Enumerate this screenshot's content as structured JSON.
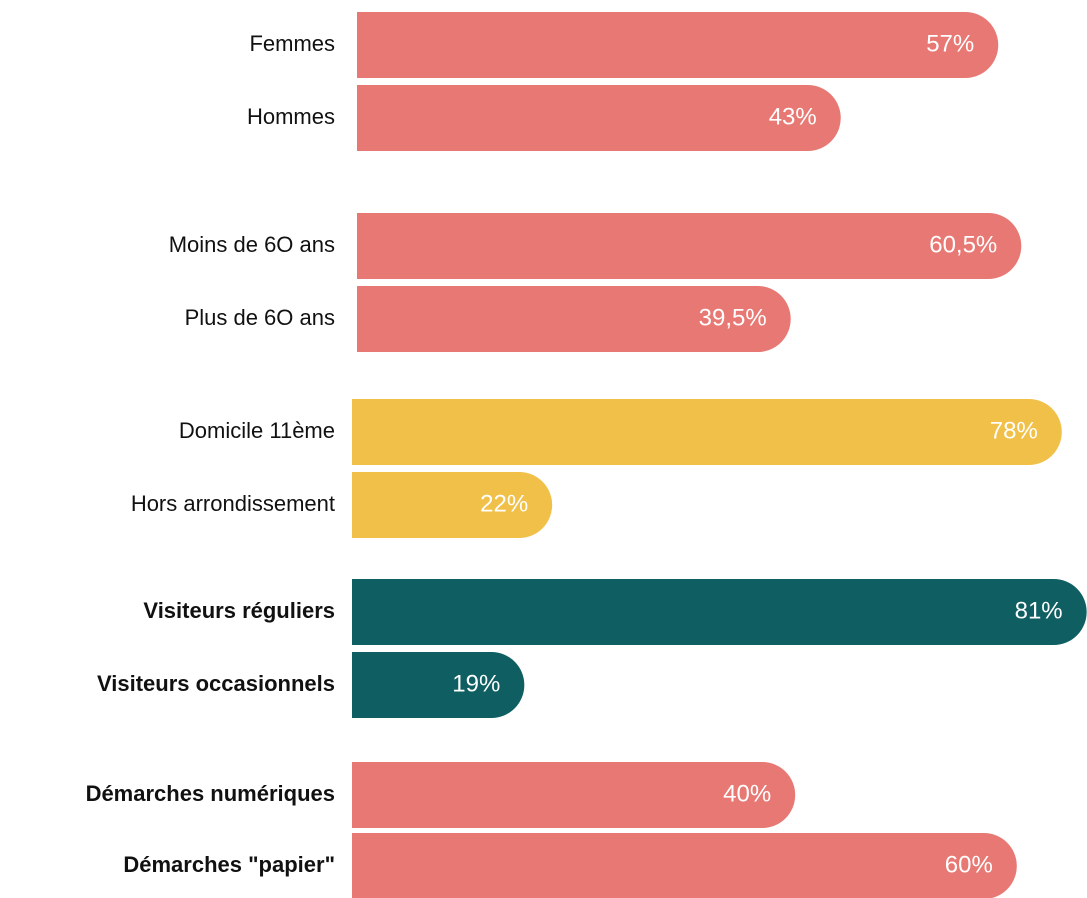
{
  "chart_data": [
    {
      "type": "bar",
      "orientation": "horizontal",
      "categories": [
        "Femmes",
        "Hommes"
      ],
      "values": [
        57,
        43
      ],
      "value_labels": [
        "57%",
        "43%"
      ],
      "color": "#e87873",
      "font_weight": "normal"
    },
    {
      "type": "bar",
      "orientation": "horizontal",
      "categories": [
        "Moins de 6O ans",
        "Plus de 6O ans"
      ],
      "values": [
        60.5,
        39.5
      ],
      "value_labels": [
        "60,5%",
        "39,5%"
      ],
      "color": "#e87873",
      "font_weight": "normal"
    },
    {
      "type": "bar",
      "orientation": "horizontal",
      "categories": [
        "Domicile 11ème",
        "Hors arrondissement"
      ],
      "values": [
        78,
        22
      ],
      "value_labels": [
        "78%",
        "22%"
      ],
      "color": "#f0c048",
      "font_weight": "normal"
    },
    {
      "type": "bar",
      "orientation": "horizontal",
      "categories": [
        "Visiteurs réguliers",
        "Visiteurs occasionnels"
      ],
      "values": [
        81,
        19
      ],
      "value_labels": [
        "81%",
        "19%"
      ],
      "color": "#0e5e62",
      "font_weight": "bold"
    },
    {
      "type": "bar",
      "orientation": "horizontal",
      "categories": [
        "Démarches numériques",
        "Démarches \"papier\""
      ],
      "values": [
        40,
        60
      ],
      "value_labels": [
        "40%",
        "60%"
      ],
      "color": "#e87873",
      "font_weight": "bold"
    }
  ]
}
